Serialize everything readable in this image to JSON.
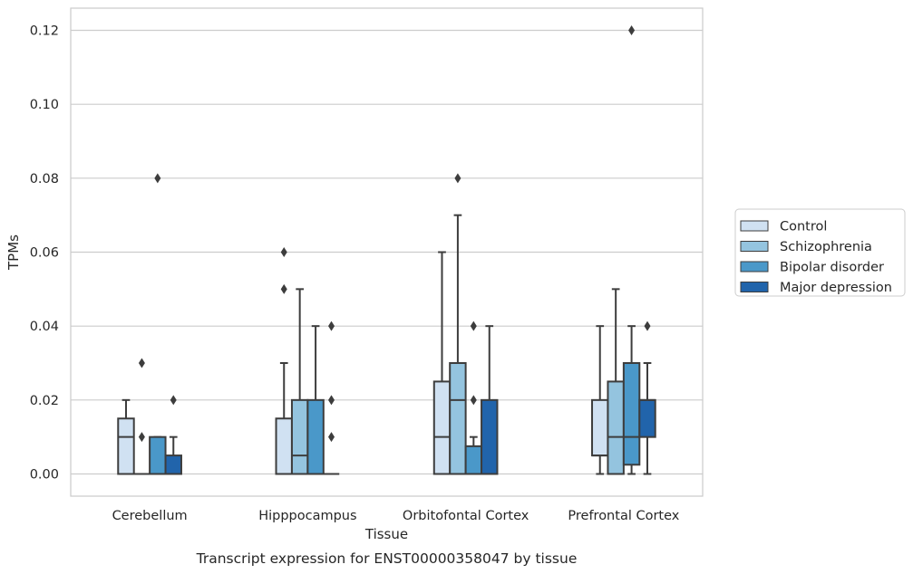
{
  "chart_data": {
    "type": "boxplot",
    "title": "Transcript expression for ENST00000358047 by tissue",
    "xlabel": "Tissue",
    "ylabel": "TPMs",
    "ylim": [
      -0.006,
      0.126
    ],
    "yticks": [
      0.0,
      0.02,
      0.04,
      0.06,
      0.08,
      0.1,
      0.12
    ],
    "ytick_labels": [
      "0.00",
      "0.02",
      "0.04",
      "0.06",
      "0.08",
      "0.10",
      "0.12"
    ],
    "grid": true,
    "legend_position": "right",
    "categories": [
      "Cerebellum",
      "Hipppocampus",
      "Orbitofontal Cortex",
      "Prefrontal Cortex"
    ],
    "series": [
      {
        "name": "Control",
        "color": "#d0e1f2",
        "boxes": [
          {
            "whislo": 0.0,
            "q1": 0.0,
            "med": 0.01,
            "q3": 0.015,
            "whishi": 0.02,
            "fliers": []
          },
          {
            "whislo": 0.0,
            "q1": 0.0,
            "med": 0.0,
            "q3": 0.015,
            "whishi": 0.03,
            "fliers": [
              0.05,
              0.06
            ]
          },
          {
            "whislo": 0.0,
            "q1": 0.0,
            "med": 0.01,
            "q3": 0.025,
            "whishi": 0.06,
            "fliers": []
          },
          {
            "whislo": 0.0,
            "q1": 0.005,
            "med": 0.005,
            "q3": 0.02,
            "whishi": 0.04,
            "fliers": []
          }
        ]
      },
      {
        "name": "Schizophrenia",
        "color": "#94c4df",
        "boxes": [
          {
            "whislo": 0.0,
            "q1": 0.0,
            "med": 0.0,
            "q3": 0.0,
            "whishi": 0.0,
            "fliers": [
              0.01,
              0.03
            ]
          },
          {
            "whislo": 0.0,
            "q1": 0.0,
            "med": 0.005,
            "q3": 0.02,
            "whishi": 0.05,
            "fliers": []
          },
          {
            "whislo": 0.0,
            "q1": 0.0,
            "med": 0.02,
            "q3": 0.03,
            "whishi": 0.07,
            "fliers": [
              0.08
            ]
          },
          {
            "whislo": 0.0,
            "q1": 0.0,
            "med": 0.01,
            "q3": 0.025,
            "whishi": 0.05,
            "fliers": []
          }
        ]
      },
      {
        "name": "Bipolar disorder",
        "color": "#4a98c9",
        "boxes": [
          {
            "whislo": 0.0,
            "q1": 0.0,
            "med": 0.0,
            "q3": 0.01,
            "whishi": 0.01,
            "fliers": [
              0.08
            ]
          },
          {
            "whislo": 0.0,
            "q1": 0.0,
            "med": 0.0,
            "q3": 0.02,
            "whishi": 0.04,
            "fliers": []
          },
          {
            "whislo": 0.0,
            "q1": 0.0,
            "med": 0.0,
            "q3": 0.0075,
            "whishi": 0.01,
            "fliers": [
              0.02,
              0.04
            ]
          },
          {
            "whislo": 0.0,
            "q1": 0.0025,
            "med": 0.01,
            "q3": 0.03,
            "whishi": 0.04,
            "fliers": [
              0.12
            ]
          }
        ]
      },
      {
        "name": "Major depression",
        "color": "#2164ab",
        "boxes": [
          {
            "whislo": 0.0,
            "q1": 0.0,
            "med": 0.0,
            "q3": 0.005,
            "whishi": 0.01,
            "fliers": [
              0.02
            ]
          },
          {
            "whislo": 0.0,
            "q1": 0.0,
            "med": 0.0,
            "q3": 0.0,
            "whishi": 0.0,
            "fliers": [
              0.01,
              0.02,
              0.04
            ]
          },
          {
            "whislo": 0.0,
            "q1": 0.0,
            "med": 0.0,
            "q3": 0.02,
            "whishi": 0.04,
            "fliers": []
          },
          {
            "whislo": 0.0,
            "q1": 0.01,
            "med": 0.02,
            "q3": 0.02,
            "whishi": 0.03,
            "fliers": [
              0.04
            ]
          }
        ]
      }
    ]
  }
}
